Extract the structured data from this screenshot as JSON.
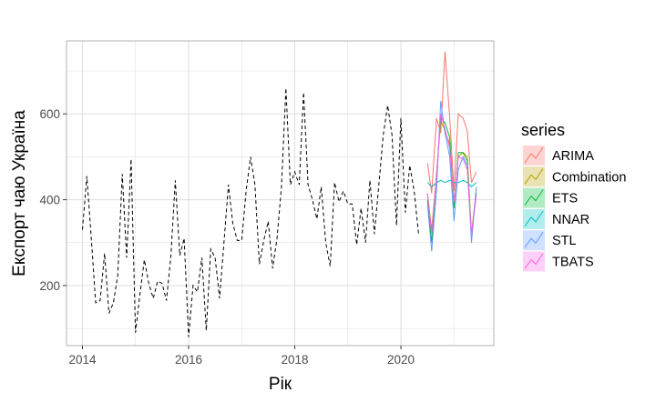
{
  "chart_data": {
    "type": "line",
    "title": "",
    "xlabel": "Рік",
    "ylabel": "Експорт чаю Україна",
    "xlim": [
      2013.7,
      2021.75
    ],
    "ylim": [
      60,
      770
    ],
    "x_ticks": [
      2014,
      2016,
      2018,
      2020
    ],
    "x_tick_labels": [
      "2014",
      "2016",
      "2018",
      "2020"
    ],
    "y_ticks": [
      200,
      400,
      600
    ],
    "y_tick_labels": [
      "200",
      "400",
      "600"
    ],
    "grid": true,
    "legend": {
      "title": "series",
      "position": "right"
    },
    "history": {
      "line_style": "dashed",
      "color": "#000000",
      "x_start": 2014.0,
      "x_step": 0.08333,
      "values": [
        330,
        455,
        310,
        160,
        165,
        275,
        135,
        160,
        225,
        460,
        265,
        495,
        90,
        180,
        260,
        205,
        170,
        210,
        205,
        165,
        270,
        445,
        270,
        310,
        80,
        200,
        185,
        265,
        95,
        285,
        265,
        170,
        300,
        435,
        345,
        305,
        305,
        420,
        500,
        435,
        250,
        305,
        350,
        240,
        310,
        430,
        660,
        435,
        465,
        435,
        650,
        435,
        400,
        355,
        430,
        300,
        245,
        440,
        395,
        420,
        390,
        390,
        295,
        380,
        300,
        445,
        320,
        435,
        550,
        620,
        550,
        340,
        590,
        370,
        480,
        420,
        320
      ]
    },
    "forecast_x": [
      2020.5,
      2020.58,
      2020.67,
      2020.75,
      2020.83,
      2020.92,
      2021.0,
      2021.08,
      2021.17,
      2021.25,
      2021.33,
      2021.42
    ],
    "series": [
      {
        "name": "ARIMA",
        "color": "#F8766D",
        "values": [
          485,
          415,
          590,
          555,
          745,
          590,
          420,
          600,
          590,
          560,
          440,
          465
        ]
      },
      {
        "name": "Combination",
        "color": "#B79F00",
        "values": [
          415,
          330,
          460,
          585,
          560,
          530,
          390,
          500,
          510,
          500,
          320,
          425
        ]
      },
      {
        "name": "ETS",
        "color": "#00BA38",
        "values": [
          400,
          300,
          455,
          590,
          580,
          545,
          380,
          510,
          510,
          490,
          320,
          415
        ]
      },
      {
        "name": "NNAR",
        "color": "#00BFC4",
        "values": [
          440,
          430,
          440,
          445,
          440,
          445,
          440,
          440,
          445,
          440,
          430,
          440
        ]
      },
      {
        "name": "STL",
        "color": "#619CFF",
        "values": [
          390,
          280,
          420,
          630,
          555,
          500,
          350,
          470,
          500,
          480,
          300,
          430
        ]
      },
      {
        "name": "TBATS",
        "color": "#F564E3",
        "values": [
          415,
          320,
          455,
          600,
          565,
          520,
          395,
          500,
          495,
          470,
          320,
          410
        ]
      }
    ]
  },
  "colors": {
    "panel_border": "#b3b3b3",
    "grid": "#dedede",
    "legend_key_alpha_fill": 0.3
  }
}
